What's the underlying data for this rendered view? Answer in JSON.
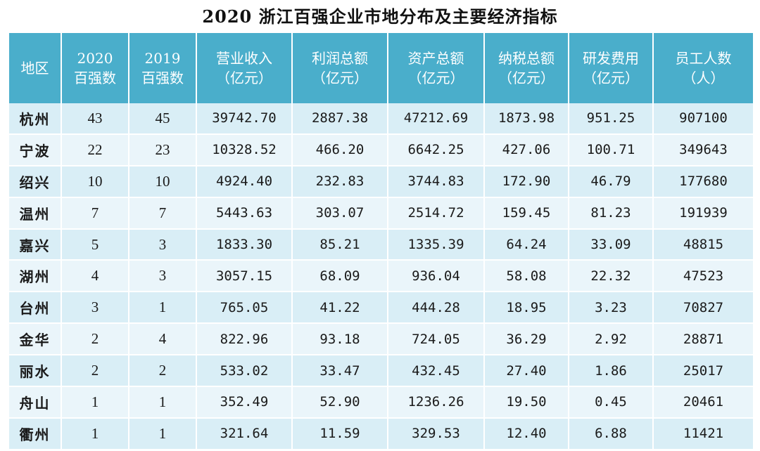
{
  "title": "2020 浙江百强企业市地分布及主要经济指标",
  "columns": [
    {
      "line1": "地区",
      "line2": ""
    },
    {
      "line1": "2020",
      "line2": "百强数"
    },
    {
      "line1": "2019",
      "line2": "百强数"
    },
    {
      "line1": "营业收入",
      "line2": "（亿元）"
    },
    {
      "line1": "利润总额",
      "line2": "（亿元）"
    },
    {
      "line1": "资产总额",
      "line2": "（亿元）"
    },
    {
      "line1": "纳税总额",
      "line2": "（亿元）"
    },
    {
      "line1": "研发费用",
      "line2": "（亿元）"
    },
    {
      "line1": "员工人数",
      "line2": "（人）"
    }
  ],
  "rows": [
    [
      "杭州",
      "43",
      "45",
      "39742.70",
      "2887.38",
      "47212.69",
      "1873.98",
      "951.25",
      "907100"
    ],
    [
      "宁波",
      "22",
      "23",
      "10328.52",
      "466.20",
      "6642.25",
      "427.06",
      "100.71",
      "349643"
    ],
    [
      "绍兴",
      "10",
      "10",
      "4924.40",
      "232.83",
      "3744.83",
      "172.90",
      "46.79",
      "177680"
    ],
    [
      "温州",
      "7",
      "7",
      "5443.63",
      "303.07",
      "2514.72",
      "159.45",
      "81.23",
      "191939"
    ],
    [
      "嘉兴",
      "5",
      "3",
      "1833.30",
      "85.21",
      "1335.39",
      "64.24",
      "33.09",
      "48815"
    ],
    [
      "湖州",
      "4",
      "3",
      "3057.15",
      "68.09",
      "936.04",
      "58.08",
      "22.32",
      "47523"
    ],
    [
      "台州",
      "3",
      "1",
      "765.05",
      "41.22",
      "444.28",
      "18.95",
      "3.23",
      "70827"
    ],
    [
      "金华",
      "2",
      "4",
      "822.96",
      "93.18",
      "724.05",
      "36.29",
      "2.92",
      "28871"
    ],
    [
      "丽水",
      "2",
      "2",
      "533.02",
      "33.47",
      "432.45",
      "27.40",
      "1.86",
      "25017"
    ],
    [
      "舟山",
      "1",
      "1",
      "352.49",
      "52.90",
      "1236.26",
      "19.50",
      "0.45",
      "20461"
    ],
    [
      "衢州",
      "1",
      "1",
      "321.64",
      "11.59",
      "329.53",
      "12.40",
      "6.88",
      "11421"
    ]
  ],
  "colors": {
    "header_bg": "#4aaecb",
    "header_text": "#ffffff",
    "row_odd": "#d9eef6",
    "row_even": "#eaf5fa"
  }
}
